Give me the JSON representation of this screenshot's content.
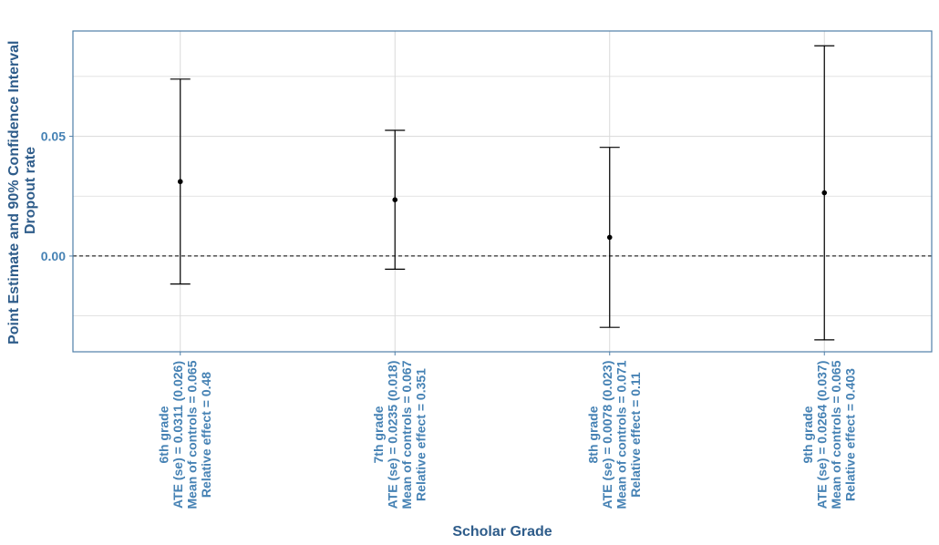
{
  "chart_data": {
    "type": "errorbar",
    "xlabel": "Scholar Grade",
    "ylabel_lines": [
      "Point Estimate and 90% Confidence Interval",
      "Dropout rate"
    ],
    "ylim": [
      -0.04,
      0.094
    ],
    "yticks": [
      0.0,
      0.05
    ],
    "ytick_labels": [
      "0.00",
      "0.05"
    ],
    "minor_gridlines_y": [
      -0.025,
      0.025,
      0.075
    ],
    "reference_line_y": 0.0,
    "grid": true,
    "colors": {
      "axis_text": "#4682b4",
      "axis_title": "#2e5c8a",
      "panel_border": "#4f7fa8",
      "grid": "#d9d9d9",
      "marks": "#000000"
    },
    "categories": [
      {
        "label_lines": [
          "6th grade",
          "ATE (se) = 0.0311 (0.026)",
          "Mean of controls = 0.065",
          "Relative effect = 0.48"
        ],
        "estimate": 0.0311,
        "lower": -0.0117,
        "upper": 0.0739
      },
      {
        "label_lines": [
          "7th grade",
          "ATE (se) = 0.0235 (0.018)",
          "Mean of controls = 0.067",
          "Relative effect = 0.351"
        ],
        "estimate": 0.0235,
        "lower": -0.0055,
        "upper": 0.0525
      },
      {
        "label_lines": [
          "8th grade",
          "ATE (se) = 0.0078 (0.023)",
          "Mean of controls = 0.071",
          "Relative effect = 0.11"
        ],
        "estimate": 0.0078,
        "lower": -0.0298,
        "upper": 0.0454
      },
      {
        "label_lines": [
          "9th grade",
          "ATE (se) = 0.0264 (0.037)",
          "Mean of controls = 0.065",
          "Relative effect = 0.403"
        ],
        "estimate": 0.0264,
        "lower": -0.035,
        "upper": 0.0878
      }
    ]
  }
}
